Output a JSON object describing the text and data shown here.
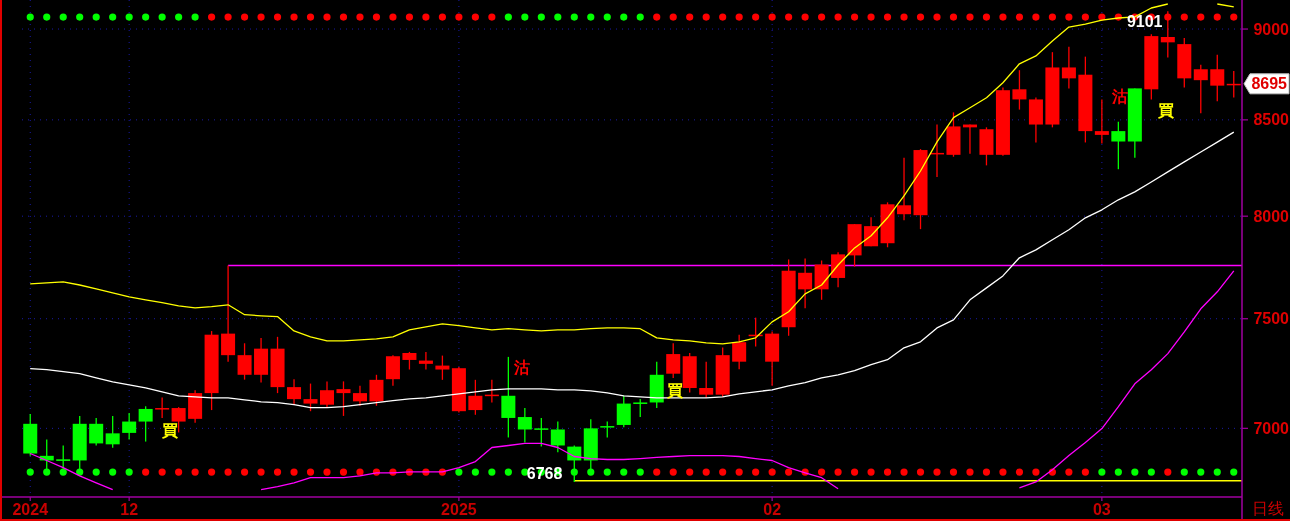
{
  "chart_data": {
    "type": "candlestick",
    "categories": [
      "2024",
      null,
      null,
      null,
      null,
      null,
      "12",
      null,
      null,
      null,
      null,
      null,
      null,
      null,
      null,
      null,
      null,
      null,
      null,
      null,
      null,
      null,
      null,
      null,
      null,
      null,
      "2025",
      null,
      null,
      null,
      null,
      null,
      null,
      null,
      null,
      null,
      null,
      null,
      null,
      null,
      null,
      null,
      null,
      null,
      null,
      "02",
      null,
      null,
      null,
      null,
      null,
      null,
      null,
      null,
      null,
      null,
      null,
      null,
      null,
      null,
      null,
      null,
      null,
      null,
      null,
      "03",
      null,
      null,
      null,
      null,
      null,
      null,
      null,
      null
    ],
    "ohlc": [
      [
        7020,
        7063,
        6880,
        6890
      ],
      [
        6880,
        6951,
        6820,
        6860
      ],
      [
        6865,
        6925,
        6824,
        6858
      ],
      [
        7020,
        7055,
        6820,
        6860
      ],
      [
        7020,
        7046,
        6925,
        6934
      ],
      [
        6978,
        7055,
        6915,
        6930
      ],
      [
        7030,
        7068,
        6951,
        6980
      ],
      [
        7086,
        7098,
        6942,
        7030
      ],
      [
        7086,
        7137,
        7046,
        7090
      ],
      [
        7030,
        7094,
        6982,
        7090
      ],
      [
        7042,
        7170,
        7025,
        7157
      ],
      [
        7157,
        7442,
        7081,
        7425
      ],
      [
        7330,
        7755,
        7300,
        7430
      ],
      [
        7240,
        7385,
        7218,
        7330
      ],
      [
        7240,
        7410,
        7205,
        7360
      ],
      [
        7184,
        7415,
        7157,
        7360
      ],
      [
        7130,
        7220,
        7105,
        7184
      ],
      [
        7110,
        7200,
        7076,
        7130
      ],
      [
        7105,
        7210,
        7095,
        7170
      ],
      [
        7157,
        7210,
        7055,
        7175
      ],
      [
        7120,
        7190,
        7100,
        7157
      ],
      [
        7120,
        7240,
        7100,
        7217
      ],
      [
        7220,
        7330,
        7190,
        7325
      ],
      [
        7308,
        7345,
        7264,
        7340
      ],
      [
        7290,
        7345,
        7264,
        7305
      ],
      [
        7264,
        7328,
        7217,
        7282
      ],
      [
        7076,
        7275,
        7070,
        7270
      ],
      [
        7081,
        7217,
        7060,
        7145
      ],
      [
        7145,
        7217,
        7115,
        7150
      ],
      [
        7145,
        7322,
        6960,
        7046
      ],
      [
        7050,
        7090,
        6938,
        6995
      ],
      [
        7000,
        7046,
        6920,
        6995
      ],
      [
        6995,
        7030,
        6895,
        6925
      ],
      [
        6920,
        6925,
        6768,
        6860
      ],
      [
        7000,
        7040,
        6810,
        6860
      ],
      [
        7010,
        7030,
        6960,
        7005
      ],
      [
        7110,
        7145,
        7005,
        7015
      ],
      [
        7115,
        7130,
        7050,
        7110
      ],
      [
        7240,
        7300,
        7090,
        7115
      ],
      [
        7245,
        7385,
        7225,
        7335
      ],
      [
        7180,
        7340,
        7160,
        7325
      ],
      [
        7150,
        7300,
        7135,
        7180
      ],
      [
        7150,
        7365,
        7140,
        7330
      ],
      [
        7300,
        7425,
        7265,
        7390
      ],
      [
        7420,
        7505,
        7370,
        7425
      ],
      [
        7300,
        7440,
        7190,
        7430
      ],
      [
        7460,
        7785,
        7420,
        7730
      ],
      [
        7640,
        7790,
        7550,
        7720
      ],
      [
        7640,
        7780,
        7590,
        7760
      ],
      [
        7695,
        7820,
        7650,
        7810
      ],
      [
        7805,
        7960,
        7750,
        7960
      ],
      [
        7850,
        7995,
        7850,
        7950
      ],
      [
        7865,
        8070,
        7845,
        8060
      ],
      [
        8010,
        8300,
        7980,
        8055
      ],
      [
        8005,
        8345,
        7935,
        8340
      ],
      [
        8320,
        8475,
        8200,
        8325
      ],
      [
        8315,
        8540,
        8305,
        8465
      ],
      [
        8460,
        8475,
        8320,
        8475
      ],
      [
        8315,
        8460,
        8260,
        8450
      ],
      [
        8315,
        8675,
        8310,
        8660
      ],
      [
        8610,
        8770,
        8555,
        8665
      ],
      [
        8475,
        8620,
        8380,
        8610
      ],
      [
        8475,
        8870,
        8460,
        8785
      ],
      [
        8725,
        8900,
        8670,
        8785
      ],
      [
        8440,
        8845,
        8380,
        8745
      ],
      [
        8420,
        8610,
        8375,
        8440
      ],
      [
        8440,
        8490,
        8240,
        8385
      ],
      [
        8670,
        8670,
        8300,
        8385
      ],
      [
        8665,
        8970,
        8610,
        8960
      ],
      [
        8925,
        9101,
        8840,
        8955
      ],
      [
        8725,
        8950,
        8675,
        8915
      ],
      [
        8715,
        8800,
        8535,
        8775
      ],
      [
        8685,
        8855,
        8600,
        8775
      ],
      [
        8690,
        8765,
        8620,
        8695
      ]
    ],
    "series": [
      {
        "type": "line",
        "color": "#ffffff",
        "values": [
          7268,
          7263,
          7254,
          7245,
          7226,
          7208,
          7194,
          7181,
          7163,
          7145,
          7140,
          7136,
          7136,
          7127,
          7118,
          7114,
          7105,
          7092,
          7092,
          7096,
          7105,
          7114,
          7123,
          7131,
          7136,
          7145,
          7154,
          7163,
          7172,
          7176,
          7176,
          7176,
          7172,
          7172,
          7167,
          7158,
          7145,
          7140,
          7136,
          7136,
          7136,
          7136,
          7140,
          7154,
          7163,
          7172,
          7190,
          7204,
          7226,
          7240,
          7259,
          7286,
          7309,
          7364,
          7392,
          7457,
          7495,
          7590,
          7647,
          7705,
          7793,
          7832,
          7882,
          7932,
          7992,
          8032,
          8083,
          8123,
          8174,
          8226,
          8278,
          8330,
          8382,
          8435
        ]
      },
      {
        "type": "line",
        "color": "#ffff00",
        "values": [
          7666,
          7671,
          7676,
          7661,
          7642,
          7623,
          7604,
          7590,
          7576,
          7561,
          7552,
          7557,
          7566,
          7519,
          7514,
          7510,
          7443,
          7415,
          7396,
          7396,
          7401,
          7406,
          7415,
          7448,
          7462,
          7476,
          7467,
          7457,
          7448,
          7453,
          7448,
          7443,
          7448,
          7448,
          7453,
          7457,
          7457,
          7453,
          7410,
          7401,
          7396,
          7387,
          7382,
          7392,
          7410,
          7485,
          7533,
          7618,
          7661,
          7758,
          7842,
          7902,
          7992,
          8103,
          8231,
          8383,
          8512,
          8565,
          8619,
          8701,
          8805,
          8849,
          8933,
          9011,
          9028,
          9051,
          9063,
          9069,
          9120,
          9143,
          null,
          null,
          9143,
          9126
        ]
      },
      {
        "type": "line",
        "color": "#ff00ff",
        "values": [
          6890,
          6860,
          6829,
          6794,
          6764,
          6735,
          null,
          null,
          null,
          null,
          null,
          null,
          null,
          null,
          6735,
          6748,
          6764,
          6786,
          6786,
          6786,
          6794,
          6807,
          6807,
          6811,
          6811,
          6811,
          6829,
          6855,
          6916,
          6925,
          6934,
          6934,
          6916,
          6877,
          6868,
          6864,
          6864,
          6868,
          6873,
          6877,
          6881,
          6881,
          6881,
          6877,
          6868,
          6860,
          6829,
          6807,
          6786,
          6739,
          null,
          null,
          null,
          null,
          null,
          null,
          null,
          null,
          null,
          null,
          6743,
          6768,
          6820,
          6881,
          6938,
          6999,
          7096,
          7199,
          7263,
          7337,
          7438,
          7547,
          7628,
          7729
        ]
      },
      {
        "type": "scatter",
        "marker": "circle",
        "values": [
          9068,
          9068,
          9068,
          9068,
          9068,
          9068,
          9068,
          9068,
          9068,
          9068,
          9068,
          9068,
          9068,
          9068,
          9068,
          9068,
          9068,
          9068,
          9068,
          9068,
          9068,
          9068,
          9068,
          9068,
          9068,
          9068,
          9068,
          9068,
          9068,
          9068,
          9068,
          9068,
          9068,
          9068,
          9068,
          9068,
          9068,
          9068,
          9068,
          9068,
          9068,
          9068,
          9068,
          9068,
          9068,
          9068,
          9068,
          9068,
          9068,
          9068,
          9068,
          9068,
          9068,
          9068,
          9068,
          9068,
          9068,
          9068,
          9068,
          9068,
          9068,
          9068,
          9068,
          9068,
          9068,
          9068,
          9068,
          9068,
          9068,
          9068,
          9068,
          9068,
          9068,
          9068
        ],
        "colors": [
          "#00ff00",
          "#00ff00",
          "#00ff00",
          "#00ff00",
          "#00ff00",
          "#00ff00",
          "#00ff00",
          "#00ff00",
          "#00ff00",
          "#00ff00",
          "#00ff00",
          "#ff0000",
          "#ff0000",
          "#ff0000",
          "#ff0000",
          "#ff0000",
          "#ff0000",
          "#ff0000",
          "#ff0000",
          "#ff0000",
          "#ff0000",
          "#ff0000",
          "#ff0000",
          "#ff0000",
          "#ff0000",
          "#ff0000",
          "#ff0000",
          "#ff0000",
          "#ff0000",
          "#00ff00",
          "#00ff00",
          "#00ff00",
          "#00ff00",
          "#00ff00",
          "#00ff00",
          "#00ff00",
          "#00ff00",
          "#00ff00",
          "#ff0000",
          "#ff0000",
          "#ff0000",
          "#ff0000",
          "#ff0000",
          "#ff0000",
          "#ff0000",
          "#ff0000",
          "#ff0000",
          "#ff0000",
          "#ff0000",
          "#ff0000",
          "#ff0000",
          "#ff0000",
          "#ff0000",
          "#ff0000",
          "#ff0000",
          "#ff0000",
          "#ff0000",
          "#ff0000",
          "#ff0000",
          "#ff0000",
          "#ff0000",
          "#ff0000",
          "#ff0000",
          "#ff0000",
          "#ff0000",
          "#ff0000",
          "#ff0000",
          "#ff0000",
          "#ff0000",
          "#ff0000",
          "#ff0000",
          "#ff0000",
          "#ff0000",
          "#ff0000"
        ]
      },
      {
        "type": "scatter",
        "marker": "circle",
        "values": [
          6810,
          6810,
          6810,
          6810,
          6810,
          6810,
          6810,
          6810,
          6810,
          6810,
          6810,
          6810,
          6810,
          6810,
          6810,
          6810,
          6810,
          6810,
          6810,
          6810,
          6810,
          6810,
          6810,
          6810,
          6810,
          6810,
          6810,
          6810,
          6810,
          6810,
          6810,
          6810,
          6810,
          6810,
          6810,
          6810,
          6810,
          6810,
          6810,
          6810,
          6810,
          6810,
          6810,
          6810,
          6810,
          6810,
          6810,
          6810,
          6810,
          6810,
          6810,
          6810,
          6810,
          6810,
          6810,
          6810,
          6810,
          6810,
          6810,
          6810,
          6810,
          6810,
          6810,
          6810,
          6810,
          6810,
          6810,
          6810,
          6810,
          6810,
          6810,
          6810,
          6810,
          6810
        ],
        "colors": [
          "#00ff00",
          "#00ff00",
          "#00ff00",
          "#00ff00",
          "#00ff00",
          "#00ff00",
          "#00ff00",
          "#ff0000",
          "#ff0000",
          "#ff0000",
          "#ff0000",
          "#ff0000",
          "#ff0000",
          "#ff0000",
          "#ff0000",
          "#ff0000",
          "#ff0000",
          "#ff0000",
          "#ff0000",
          "#ff0000",
          "#ff0000",
          "#ff0000",
          "#ff0000",
          "#ff0000",
          "#ff0000",
          "#ff0000",
          "#00ff00",
          "#00ff00",
          "#00ff00",
          "#00ff00",
          "#00ff00",
          "#00ff00",
          "#00ff00",
          "#00ff00",
          "#00ff00",
          "#00ff00",
          "#00ff00",
          "#00ff00",
          "#ff0000",
          "#ff0000",
          "#ff0000",
          "#ff0000",
          "#ff0000",
          "#ff0000",
          "#ff0000",
          "#ff0000",
          "#ff0000",
          "#ff0000",
          "#ff0000",
          "#ff0000",
          "#ff0000",
          "#ff0000",
          "#ff0000",
          "#ff0000",
          "#ff0000",
          "#ff0000",
          "#ff0000",
          "#ff0000",
          "#ff0000",
          "#ff0000",
          "#ff0000",
          "#ff0000",
          "#ff0000",
          "#ff0000",
          "#ff0000",
          "#00ff00",
          "#00ff00",
          "#00ff00",
          "#00ff00",
          "#ff0000",
          "#00ff00",
          "#00ff00",
          "#00ff00",
          "#00ff00"
        ]
      }
    ],
    "ref_lines": [
      {
        "axis": "y",
        "value": 7755,
        "color": "#ff00ff"
      },
      {
        "axis": "y",
        "value": 6773,
        "color": "#ffff00"
      }
    ],
    "annotations": [
      "買",
      "沽",
      "買",
      "沽",
      "買",
      {
        "text": "9101",
        "y": 9101
      },
      "6768",
      "8695",
      "日线"
    ],
    "ylim": [
      6704,
      9166
    ],
    "yticks": [
      7000,
      7500,
      8000,
      8500,
      9000
    ],
    "log": "y",
    "grid": true
  }
}
